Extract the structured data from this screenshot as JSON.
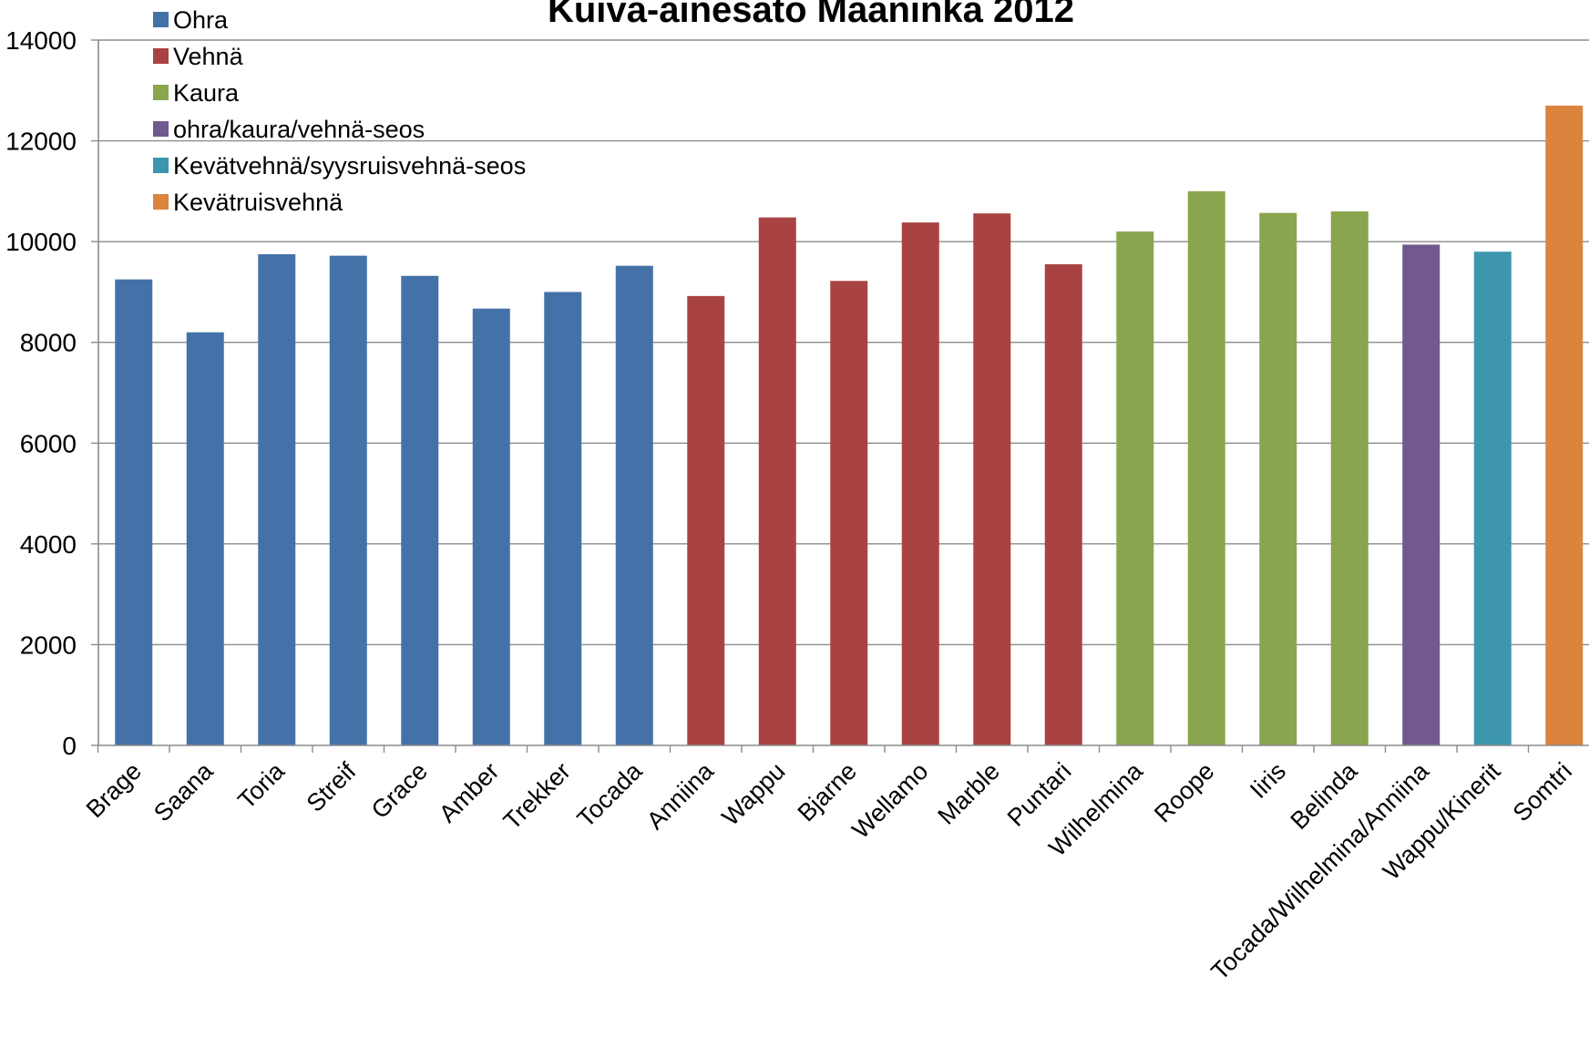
{
  "chart_data": {
    "type": "bar",
    "title": "Kuiva-ainesato Maaninka 2012",
    "xlabel": "",
    "ylabel": "",
    "ylim": [
      0,
      14000
    ],
    "yticks": [
      0,
      2000,
      4000,
      6000,
      8000,
      10000,
      12000,
      14000
    ],
    "grid": true,
    "legend_position": "top-left",
    "legend": [
      {
        "name": "Ohra",
        "color": "#4472A8"
      },
      {
        "name": "Vehnä",
        "color": "#A94343"
      },
      {
        "name": "Kaura",
        "color": "#89A54E"
      },
      {
        "name": "ohra/kaura/vehnä-seos",
        "color": "#71588F"
      },
      {
        "name": "Kevätvehnä/syysruisvehnä-seos",
        "color": "#3D96AE"
      },
      {
        "name": "Kevätruisvehnä",
        "color": "#DB843D"
      }
    ],
    "categories": [
      "Brage",
      "Saana",
      "Toria",
      "Streif",
      "Grace",
      "Amber",
      "Trekker",
      "Tocada",
      "Anniina",
      "Wappu",
      "Bjarne",
      "Wellamo",
      "Marble",
      "Puntari",
      "Wilhelmina",
      "Roope",
      "Iiris",
      "Belinda",
      "Tocada/Wilhelmina/Anniina",
      "Wappu/Kinerit",
      "Somtri"
    ],
    "values": [
      9250,
      8200,
      9750,
      9720,
      9320,
      8670,
      9000,
      9520,
      8920,
      10480,
      9220,
      10380,
      10560,
      9550,
      10200,
      11000,
      10570,
      10600,
      9940,
      9800,
      12700
    ],
    "bar_group": [
      0,
      0,
      0,
      0,
      0,
      0,
      0,
      0,
      1,
      1,
      1,
      1,
      1,
      1,
      2,
      2,
      2,
      2,
      3,
      4,
      5
    ]
  }
}
